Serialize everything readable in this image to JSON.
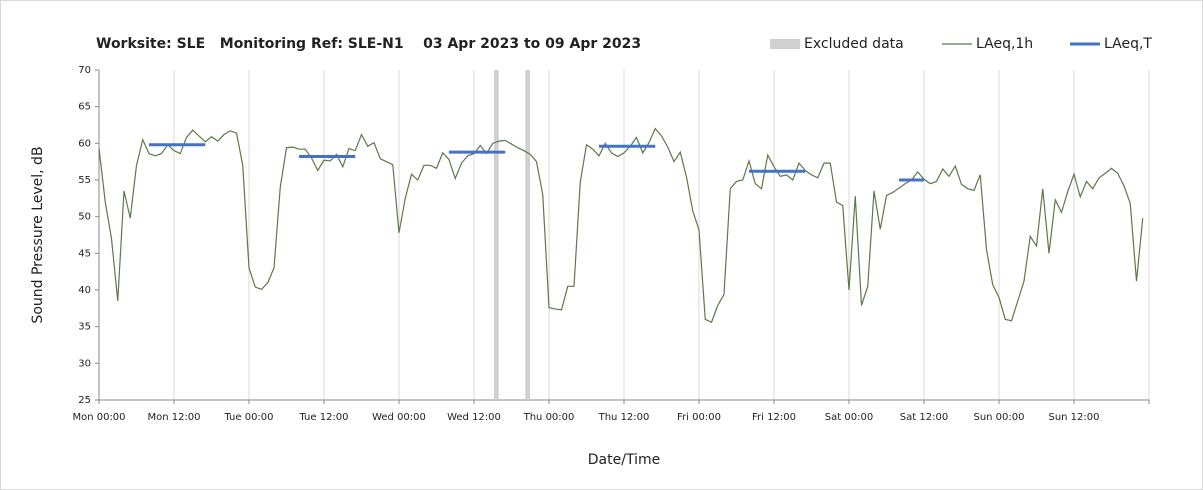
{
  "chart_data": {
    "type": "line",
    "title": "Worksite: SLE   Monitoring Ref: SLE-N1    03 Apr 2023 to 09 Apr 2023",
    "x_label": "Date/Time",
    "y_label": "Sound Pressure Level, dB",
    "xlim": [
      0,
      168
    ],
    "xticks": [
      {
        "value": 0,
        "label": "Mon 00:00"
      },
      {
        "value": 12,
        "label": "Mon 12:00"
      },
      {
        "value": 24,
        "label": "Tue 00:00"
      },
      {
        "value": 36,
        "label": "Tue 12:00"
      },
      {
        "value": 48,
        "label": "Wed 00:00"
      },
      {
        "value": 60,
        "label": "Wed 12:00"
      },
      {
        "value": 72,
        "label": "Thu 00:00"
      },
      {
        "value": 84,
        "label": "Thu 12:00"
      },
      {
        "value": 96,
        "label": "Fri 00:00"
      },
      {
        "value": 108,
        "label": "Fri 12:00"
      },
      {
        "value": 120,
        "label": "Sat 00:00"
      },
      {
        "value": 132,
        "label": "Sat 12:00"
      },
      {
        "value": 144,
        "label": "Sun 00:00"
      },
      {
        "value": 156,
        "label": "Sun 12:00"
      },
      {
        "value": 168,
        "label": ""
      }
    ],
    "ylim": [
      25,
      70
    ],
    "yticks": [
      25,
      30,
      35,
      40,
      45,
      50,
      55,
      60,
      65,
      70
    ],
    "xgrid": true,
    "legend": "top-right",
    "series": [
      {
        "name": "Excluded data",
        "kind": "band",
        "color": "#d0d0d0",
        "ranges": [
          [
            63,
            64
          ],
          [
            68,
            69
          ]
        ]
      },
      {
        "name": "LAeq,1h",
        "kind": "line",
        "color": "#5b7a47",
        "x": [
          0,
          1,
          2,
          3,
          4,
          5,
          6,
          7,
          8,
          9,
          10,
          11,
          12,
          13,
          14,
          15,
          16,
          17,
          18,
          19,
          20,
          21,
          22,
          23,
          24,
          25,
          26,
          27,
          28,
          29,
          30,
          31,
          32,
          33,
          34,
          35,
          36,
          37,
          38,
          39,
          40,
          41,
          42,
          43,
          44,
          45,
          46,
          47,
          48,
          49,
          50,
          51,
          52,
          53,
          54,
          55,
          56,
          57,
          58,
          59,
          60,
          61,
          62,
          63,
          64,
          65,
          66,
          67,
          68,
          69,
          70,
          71,
          72,
          73,
          74,
          75,
          76,
          77,
          78,
          79,
          80,
          81,
          82,
          83,
          84,
          85,
          86,
          87,
          88,
          89,
          90,
          91,
          92,
          93,
          94,
          95,
          96,
          97,
          98,
          99,
          100,
          101,
          102,
          103,
          104,
          105,
          106,
          107,
          108,
          109,
          110,
          111,
          112,
          113,
          114,
          115,
          116,
          117,
          118,
          119,
          120,
          121,
          122,
          123,
          124,
          125,
          126,
          127,
          128,
          129,
          130,
          131,
          132,
          133,
          134,
          135,
          136,
          137,
          138,
          139,
          140,
          141,
          142,
          143,
          144,
          145,
          146,
          147,
          148,
          149,
          150,
          151,
          152,
          153,
          154,
          155,
          156,
          157,
          158,
          159,
          160,
          161,
          162,
          163,
          164,
          165,
          166,
          167
        ],
        "values": [
          59.3,
          52,
          47,
          38.5,
          53.5,
          49.8,
          57,
          60.5,
          58.6,
          58.3,
          58.6,
          59.8,
          59,
          58.6,
          60.8,
          61.8,
          61,
          60.2,
          60.9,
          60.3,
          61.2,
          61.7,
          61.4,
          57,
          43,
          40.4,
          40.1,
          41,
          43,
          54,
          59.4,
          59.5,
          59.2,
          59.2,
          58,
          56.3,
          57.7,
          57.6,
          58.5,
          56.8,
          59.3,
          59,
          61.2,
          59.6,
          60.1,
          57.9,
          57.5,
          57.1,
          47.8,
          52.5,
          55.8,
          55,
          57,
          57,
          56.6,
          58.7,
          57.8,
          55.2,
          57.3,
          58.3,
          58.6,
          59.7,
          58.6,
          60,
          60.3,
          60.4,
          59.9,
          59.4,
          59,
          58.5,
          57.5,
          53,
          37.6,
          37.4,
          37.3,
          40.5,
          40.5,
          54.7,
          59.8,
          59.2,
          58.3,
          60,
          58.7,
          58.2,
          58.7,
          59.6,
          60.8,
          58.7,
          60.1,
          62,
          61,
          59.5,
          57.5,
          58.8,
          55.4,
          50.8,
          48.2,
          36,
          35.6,
          37.9,
          39.4,
          53.8,
          54.8,
          55,
          57.6,
          54.5,
          53.8,
          58.4,
          56.8,
          55.5,
          55.7,
          55,
          57.3,
          56.3,
          55.7,
          55.3,
          57.3,
          57.3,
          52,
          51.5,
          40,
          52.8,
          37.9,
          40.5,
          53.5,
          48.3,
          52.9,
          53.3,
          53.9,
          54.5,
          55,
          56.1,
          55.1,
          54.5,
          54.8,
          56.5,
          55.5,
          56.9,
          54.4,
          53.8,
          53.6,
          55.7,
          45.5,
          40.7,
          39,
          36,
          35.8,
          38.5,
          41.2,
          47.3,
          46,
          53.8,
          45,
          52.3,
          50.6,
          53.4,
          55.8,
          52.7,
          54.8,
          53.8,
          55.3,
          55.9,
          56.6,
          55.9,
          54.2,
          51.8,
          41.2,
          49.8
        ]
      },
      {
        "name": "LAeq,T",
        "kind": "segments",
        "color": "#4472c4",
        "ranges": [
          [
            8,
            17
          ],
          [
            32,
            41
          ],
          [
            56,
            65
          ],
          [
            80,
            89
          ],
          [
            104,
            113
          ],
          [
            128,
            132
          ]
        ],
        "values": [
          59.8,
          58.2,
          58.8,
          59.6,
          56.2,
          55
        ]
      }
    ]
  }
}
